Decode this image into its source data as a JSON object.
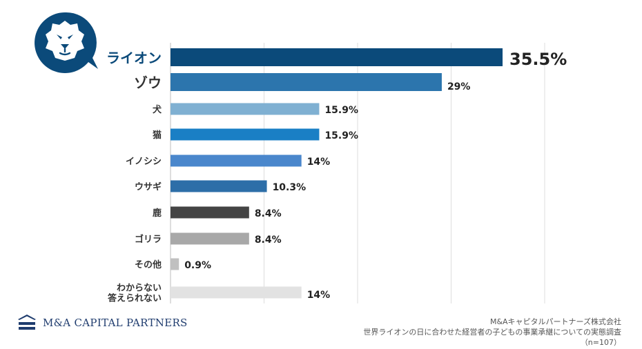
{
  "chart_data": {
    "type": "bar",
    "orientation": "horizontal",
    "categories": [
      [
        "ライオン"
      ],
      [
        "ゾウ"
      ],
      [
        "犬"
      ],
      [
        "猫"
      ],
      [
        "イノシシ"
      ],
      [
        "ウサギ"
      ],
      [
        "鹿"
      ],
      [
        "ゴリラ"
      ],
      [
        "その他"
      ],
      [
        "わからない",
        "答えられない"
      ]
    ],
    "values": [
      35.5,
      29,
      15.9,
      15.9,
      14,
      10.3,
      8.4,
      8.4,
      0.9,
      14
    ],
    "value_labels": [
      "35.5%",
      "29%",
      "15.9%",
      "15.9%",
      "14%",
      "10.3%",
      "8.4%",
      "8.4%",
      "0.9%",
      "14%"
    ],
    "bar_colors": [
      "#0b4a7a",
      "#2c75ad",
      "#7fb0d2",
      "#1a7fc5",
      "#4a87cc",
      "#2d6ea8",
      "#444444",
      "#a8a8a8",
      "#c0c0c0",
      "#e2e2e2"
    ],
    "xlim": [
      0,
      40
    ],
    "x_gridlines": [
      0,
      10,
      20,
      30,
      40
    ],
    "highlight_index": 0,
    "highlight_color": "#0b4a7a",
    "grid": true,
    "legend": "none"
  },
  "branding": {
    "icon": "lion-face-icon",
    "icon_color": "#0b4a7a",
    "company_logo_text": "M&A CAPITAL PARTNERS",
    "logo_icon": "mountain-layers-icon",
    "logo_color": "#1f3c6e"
  },
  "source": {
    "company": "M&Aキャピタルパートナーズ株式会社",
    "survey": "世界ライオンの日に合わせた経営者の子どもの事業承継についての実態調査",
    "sample": "（n=107）"
  }
}
